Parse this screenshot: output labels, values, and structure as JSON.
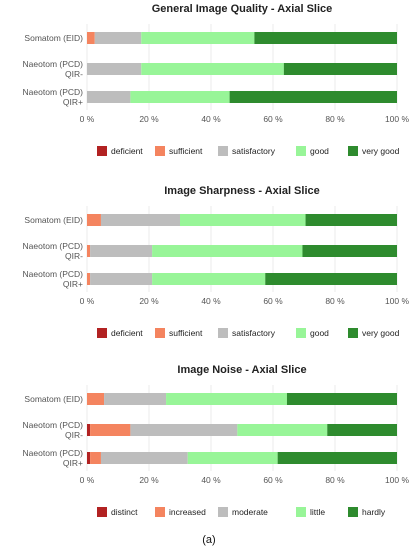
{
  "caption": "(a)",
  "chart_data": [
    {
      "type": "bar",
      "orientation": "horizontal",
      "stacked": true,
      "title": "General Image Quality - Axial Slice",
      "categories": [
        "Somatom (EID)",
        "Naeotom (PCD)\nQIR-",
        "Naeotom (PCD)\nQIR+"
      ],
      "xlim": [
        0,
        100
      ],
      "xticks": [
        "0 %",
        "20 %",
        "40 %",
        "60 %",
        "80 %",
        "100 %"
      ],
      "series": [
        {
          "name": "deficient",
          "color": "#b22222",
          "values": [
            0,
            0,
            0
          ]
        },
        {
          "name": "sufficient",
          "color": "#f4845f",
          "values": [
            2.5,
            0,
            0
          ]
        },
        {
          "name": "satisfactory",
          "color": "#bdbdbd",
          "values": [
            15,
            17.5,
            14
          ]
        },
        {
          "name": "good",
          "color": "#98f598",
          "values": [
            36.5,
            46,
            32
          ]
        },
        {
          "name": "very good",
          "color": "#2e8b2e",
          "values": [
            46,
            36.5,
            54
          ]
        }
      ],
      "legend_position": "bottom"
    },
    {
      "type": "bar",
      "orientation": "horizontal",
      "stacked": true,
      "title": "Image Sharpness - Axial Slice",
      "categories": [
        "Somatom (EID)",
        "Naeotom (PCD)\nQIR-",
        "Naeotom (PCD)\nQIR+"
      ],
      "xlim": [
        0,
        100
      ],
      "xticks": [
        "0 %",
        "20 %",
        "40 %",
        "60 %",
        "80 %",
        "100 %"
      ],
      "series": [
        {
          "name": "deficient",
          "color": "#b22222",
          "values": [
            0,
            0,
            0
          ]
        },
        {
          "name": "sufficient",
          "color": "#f4845f",
          "values": [
            4.5,
            1,
            1
          ]
        },
        {
          "name": "satisfactory",
          "color": "#bdbdbd",
          "values": [
            25.5,
            20,
            20
          ]
        },
        {
          "name": "good",
          "color": "#98f598",
          "values": [
            40.5,
            48.5,
            36.5
          ]
        },
        {
          "name": "very good",
          "color": "#2e8b2e",
          "values": [
            29.5,
            30.5,
            42.5
          ]
        }
      ],
      "legend_position": "bottom"
    },
    {
      "type": "bar",
      "orientation": "horizontal",
      "stacked": true,
      "title": "Image Noise - Axial Slice",
      "categories": [
        "Somatom (EID)",
        "Naeotom (PCD)\nQIR-",
        "Naeotom (PCD)\nQIR+"
      ],
      "xlim": [
        0,
        100
      ],
      "xticks": [
        "0 %",
        "20 %",
        "40 %",
        "60 %",
        "80 %",
        "100 %"
      ],
      "series": [
        {
          "name": "distinct",
          "color": "#b22222",
          "values": [
            0,
            1,
            1
          ]
        },
        {
          "name": "increased",
          "color": "#f4845f",
          "values": [
            5.5,
            13,
            3.5
          ]
        },
        {
          "name": "moderate",
          "color": "#bdbdbd",
          "values": [
            20,
            34.5,
            28
          ]
        },
        {
          "name": "little",
          "color": "#98f598",
          "values": [
            39,
            29,
            29
          ]
        },
        {
          "name": "hardly",
          "color": "#2e8b2e",
          "values": [
            35.5,
            22.5,
            38.5
          ]
        }
      ],
      "legend_position": "bottom"
    }
  ]
}
